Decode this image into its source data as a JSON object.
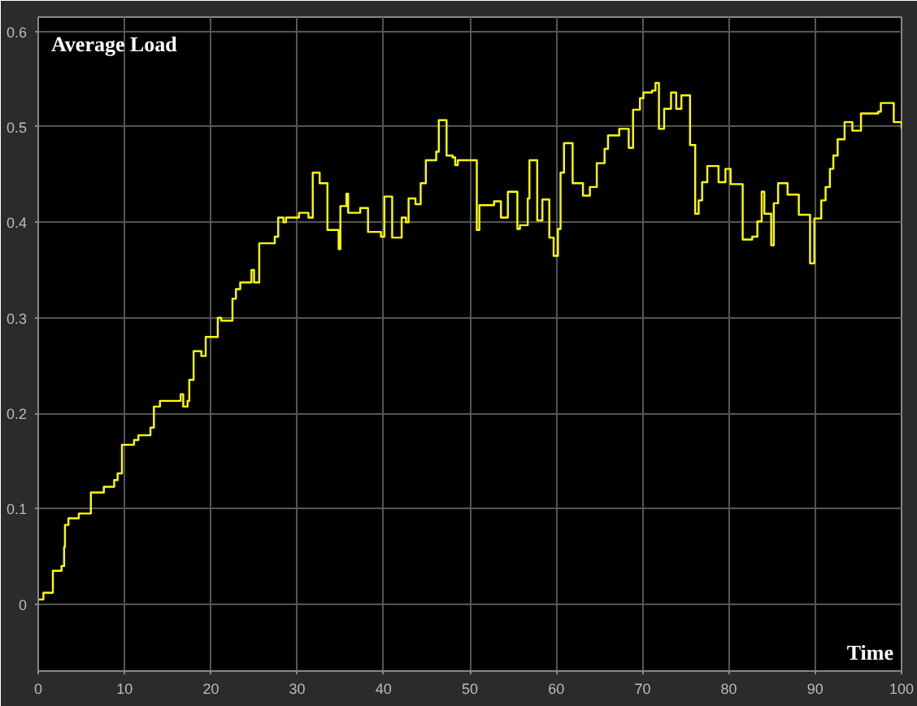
{
  "chart_data": {
    "type": "step",
    "title": "Average Load",
    "xlabel": "Time",
    "x": [
      0,
      0.6,
      1.7,
      2.7,
      3,
      3.1,
      3.5,
      4.7,
      6.1,
      7.6,
      8.8,
      9.2,
      9.7,
      11.1,
      11.6,
      13,
      13.4,
      14.1,
      16.5,
      16.8,
      17.3,
      17.5,
      18,
      18.9,
      19.4,
      20.8,
      21.2,
      22.5,
      22.9,
      23.4,
      24.7,
      25,
      25.6,
      27.4,
      27.8,
      28.4,
      28.7,
      30.2,
      31.3,
      31.8,
      32.6,
      33.5,
      34.8,
      35,
      35.7,
      35.9,
      37.3,
      38.2,
      39.7,
      40.1,
      41,
      42.1,
      42.6,
      42.9,
      43.7,
      44.3,
      44.9,
      46.1,
      46.4,
      47.3,
      48,
      48.3,
      48.6,
      50.8,
      51.1,
      52.8,
      53.6,
      54.4,
      55.5,
      55.8,
      56.7,
      56.9,
      57.8,
      58.4,
      59.2,
      59.7,
      60.2,
      60.5,
      60.9,
      61.9,
      63.1,
      63.9,
      64.7,
      65.6,
      66,
      67.3,
      68.4,
      68.9,
      69.7,
      70.1,
      71.1,
      71.5,
      71.9,
      72.5,
      73.3,
      73.9,
      74.5,
      75.5,
      76.1,
      76.5,
      76.9,
      77.5,
      78.8,
      79.6,
      80.2,
      81.6,
      82.7,
      83.3,
      83.8,
      84.1,
      84.9,
      85.2,
      85.7,
      86.8,
      88.1,
      89.4,
      89.9,
      90.7,
      91.2,
      91.7,
      92.1,
      92.6,
      93.4,
      94.3,
      95.3,
      97.3,
      97.6,
      99.1,
      100
    ],
    "series": [
      {
        "color": "#ffff00",
        "values": [
          0.005,
          0.012,
          0.035,
          0.04,
          0.06,
          0.083,
          0.09,
          0.095,
          0.117,
          0.123,
          0.13,
          0.137,
          0.167,
          0.172,
          0.177,
          0.185,
          0.207,
          0.213,
          0.22,
          0.207,
          0.213,
          0.235,
          0.265,
          0.26,
          0.28,
          0.3,
          0.297,
          0.32,
          0.33,
          0.337,
          0.35,
          0.337,
          0.378,
          0.385,
          0.405,
          0.4,
          0.405,
          0.41,
          0.405,
          0.452,
          0.441,
          0.392,
          0.372,
          0.417,
          0.43,
          0.41,
          0.415,
          0.39,
          0.385,
          0.427,
          0.384,
          0.405,
          0.4,
          0.425,
          0.419,
          0.441,
          0.465,
          0.474,
          0.507,
          0.47,
          0.468,
          0.46,
          0.465,
          0.392,
          0.418,
          0.422,
          0.405,
          0.432,
          0.393,
          0.397,
          0.425,
          0.465,
          0.402,
          0.424,
          0.384,
          0.365,
          0.393,
          0.452,
          0.483,
          0.441,
          0.428,
          0.437,
          0.462,
          0.477,
          0.491,
          0.498,
          0.478,
          0.518,
          0.53,
          0.536,
          0.538,
          0.546,
          0.498,
          0.519,
          0.536,
          0.519,
          0.533,
          0.481,
          0.409,
          0.423,
          0.442,
          0.459,
          0.442,
          0.456,
          0.44,
          0.382,
          0.385,
          0.401,
          0.432,
          0.409,
          0.376,
          0.42,
          0.441,
          0.429,
          0.408,
          0.357,
          0.404,
          0.423,
          0.437,
          0.456,
          0.47,
          0.487,
          0.505,
          0.496,
          0.514,
          0.516,
          0.525,
          0.505,
          0.498
        ]
      }
    ],
    "xlim": [
      0,
      100
    ],
    "ylim": [
      -0.07,
      0.615
    ],
    "xticks": [
      0,
      10,
      20,
      30,
      40,
      50,
      60,
      70,
      80,
      90,
      100
    ],
    "yticks": [
      0,
      0.1,
      0.2,
      0.3,
      0.4,
      0.5,
      0.6
    ],
    "grid": true
  }
}
